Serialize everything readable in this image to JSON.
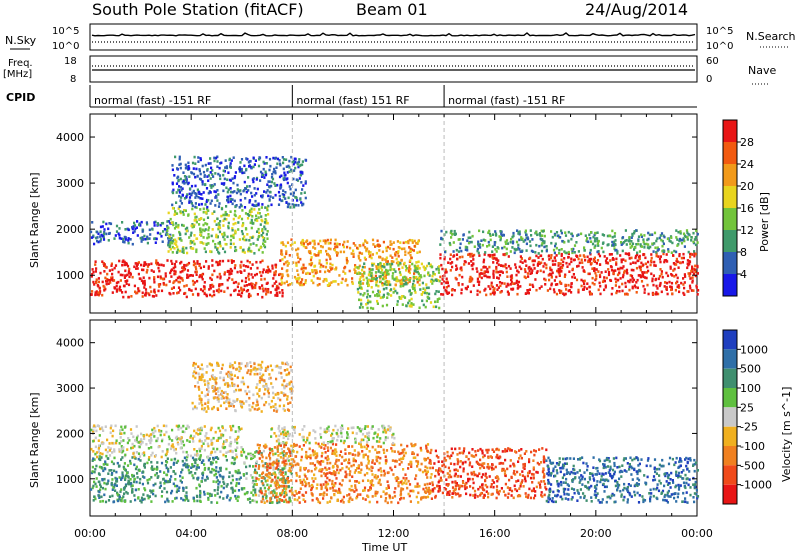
{
  "header": {
    "station": "South Pole Station (fitACF)",
    "beam": "Beam 01",
    "date": "24/Aug/2014"
  },
  "status_panels": {
    "nsky_label": "N.Sky",
    "nsky_ticks": [
      "10^5",
      "10^0"
    ],
    "nsearch_label": "N.Search",
    "nsearch_ticks": [
      "10^5",
      "10^0"
    ],
    "freq_label_1": "Freq.",
    "freq_label_2": "[MHz]",
    "freq_ticks": [
      "18",
      "8"
    ],
    "nave_label": "Nave",
    "nave_ticks": [
      "60",
      "0"
    ],
    "cpid_label": "CPID",
    "cpid_segments": [
      {
        "label": "normal (fast) -151 RF",
        "start": 0,
        "end": 8
      },
      {
        "label": "normal (fast) 151 RF",
        "start": 8,
        "end": 14
      },
      {
        "label": "normal (fast) -151 RF",
        "start": 14,
        "end": 24
      }
    ]
  },
  "chart_data": [
    {
      "type": "heatmap",
      "panel": "power",
      "ylabel": "Slant Range [km]",
      "yticks": [
        "1000",
        "2000",
        "3000",
        "4000"
      ],
      "ylim": [
        180,
        4500
      ],
      "xlim": [
        0,
        24
      ],
      "colorbar_label": "Power [dB]",
      "colorbar_ticks": [
        "4",
        "8",
        "12",
        "16",
        "20",
        "24",
        "28"
      ],
      "colorbar_colors": [
        "#1818e8",
        "#2f5fb3",
        "#3f9a6b",
        "#72c43b",
        "#e8d41e",
        "#f29a1a",
        "#f25a10",
        "#e81515"
      ],
      "scatter_regions": [
        {
          "t0": 0,
          "t1": 7.6,
          "r0": 550,
          "r1": 1350,
          "level": 7
        },
        {
          "t0": 0,
          "t1": 3.2,
          "r0": 1700,
          "r1": 2200,
          "level": 1
        },
        {
          "t0": 3,
          "t1": 7,
          "r0": 1500,
          "r1": 2500,
          "level": 3
        },
        {
          "t0": 3.2,
          "t1": 8.5,
          "r0": 2500,
          "r1": 3600,
          "level": 1
        },
        {
          "t0": 7.5,
          "t1": 13,
          "r0": 800,
          "r1": 1800,
          "level": 5
        },
        {
          "t0": 10.5,
          "t1": 13.8,
          "r0": 300,
          "r1": 1300,
          "level": 3
        },
        {
          "t0": 13.8,
          "t1": 24,
          "r0": 600,
          "r1": 1500,
          "level": 7
        },
        {
          "t0": 13.8,
          "t1": 24,
          "r0": 1500,
          "r1": 2000,
          "level": 2
        }
      ]
    },
    {
      "type": "heatmap",
      "panel": "velocity",
      "ylabel": "Slant Range [km]",
      "yticks": [
        "1000",
        "2000",
        "3000",
        "4000"
      ],
      "ylim": [
        180,
        4500
      ],
      "xlim": [
        0,
        24
      ],
      "xticks": [
        "00:00",
        "04:00",
        "08:00",
        "12:00",
        "16:00",
        "20:00",
        "00:00"
      ],
      "xlabel": "Time UT",
      "colorbar_label": "Velocity [m s^-1]",
      "colorbar_ticks": [
        "1000",
        "500",
        "100",
        "25",
        "-25",
        "-100",
        "-500",
        "-1000"
      ],
      "colorbar_colors": [
        "#1f3fbf",
        "#2f6fa8",
        "#3f8f6f",
        "#5fc03f",
        "#c9c9c9",
        "#f0b020",
        "#f08020",
        "#f04a1a",
        "#e81515"
      ],
      "scatter_regions": [
        {
          "t0": 0,
          "t1": 6,
          "r0": 500,
          "r1": 1500,
          "level": 2
        },
        {
          "t0": 0,
          "t1": 6,
          "r0": 1500,
          "r1": 2200,
          "level": 4
        },
        {
          "t0": 6,
          "t1": 8,
          "r0": 500,
          "r1": 1700,
          "level": 3
        },
        {
          "t0": 6.5,
          "t1": 13.5,
          "r0": 500,
          "r1": 1800,
          "level": 6
        },
        {
          "t0": 7,
          "t1": 12,
          "r0": 1800,
          "r1": 2200,
          "level": 4
        },
        {
          "t0": 4,
          "t1": 8,
          "r0": 2500,
          "r1": 3600,
          "level": 5
        },
        {
          "t0": 13.5,
          "t1": 18,
          "r0": 600,
          "r1": 1700,
          "level": 7
        },
        {
          "t0": 18,
          "t1": 24,
          "r0": 500,
          "r1": 1500,
          "level": 1
        }
      ]
    }
  ]
}
